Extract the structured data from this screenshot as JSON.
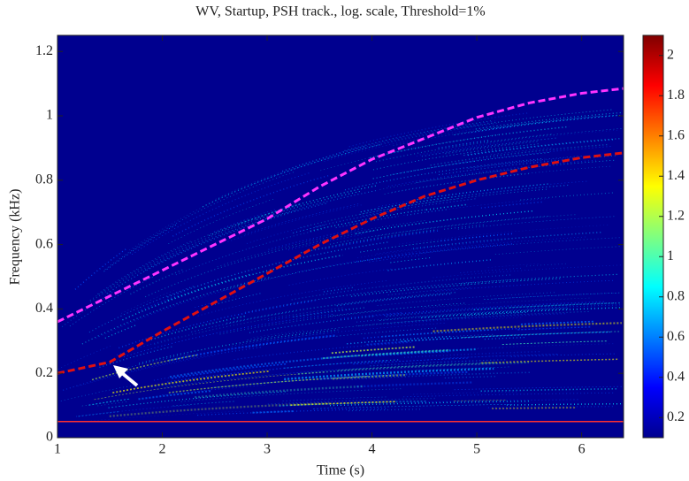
{
  "chart_data": {
    "type": "line",
    "title": "WV, Startup, PSH track., log. scale, Threshold=1%",
    "x_label": "Time (s)",
    "y_label": "Frequency (kHz)",
    "background": "#00008f",
    "x": [
      1,
      1.5,
      2,
      2.5,
      3,
      3.5,
      4,
      4.5,
      5,
      5.5,
      6,
      6.4
    ],
    "series": [
      {
        "color": "#ff33ff",
        "style": "dashed",
        "values": [
          0.36,
          0.44,
          0.52,
          0.6,
          0.68,
          0.78,
          0.865,
          0.93,
          0.995,
          1.04,
          1.07,
          1.085
        ]
      },
      {
        "color": "#e01010",
        "style": "dashed",
        "values": [
          0.2,
          0.235,
          0.33,
          0.42,
          0.51,
          0.6,
          0.68,
          0.75,
          0.8,
          0.84,
          0.87,
          0.885
        ]
      },
      {
        "color": "#ff3030",
        "style": "solid",
        "values": [
          0.05,
          0.05,
          0.05,
          0.05,
          0.05,
          0.05,
          0.05,
          0.05,
          0.05,
          0.05,
          0.05,
          0.05
        ]
      }
    ],
    "xlim": [
      1,
      6.4
    ],
    "ylim": [
      0,
      1.25
    ],
    "xticks": [
      1,
      2,
      3,
      4,
      5,
      6
    ],
    "yticks": [
      0,
      0.2,
      0.4,
      0.6,
      0.8,
      1,
      1.2
    ],
    "colorbar": {
      "lim": [
        0.1,
        2.1
      ],
      "ticks": [
        0.2,
        0.4,
        0.6,
        0.8,
        1,
        1.2,
        1.4,
        1.6,
        1.8,
        2
      ]
    }
  }
}
